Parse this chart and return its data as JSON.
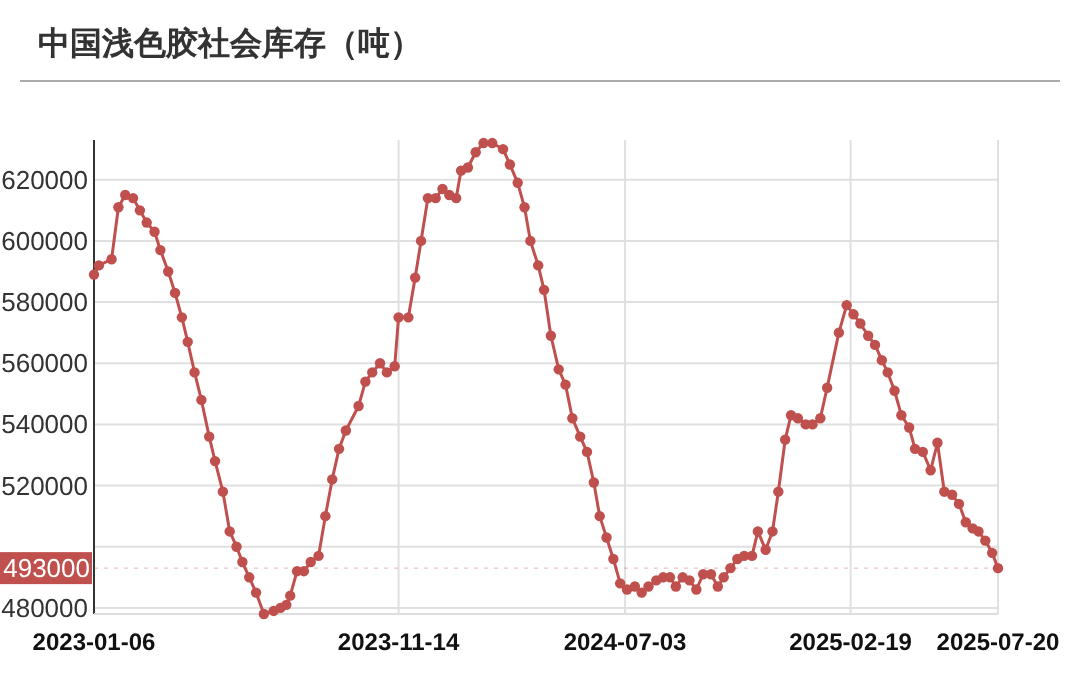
{
  "chart_data": {
    "type": "line",
    "title": "中国浅色胶社会库存（吨）",
    "x": [
      "2023-01-06",
      "2023-01-11",
      "2023-01-24",
      "2023-01-31",
      "2023-02-07",
      "2023-02-15",
      "2023-02-22",
      "2023-03-01",
      "2023-03-09",
      "2023-03-15",
      "2023-03-23",
      "2023-03-30",
      "2023-04-06",
      "2023-04-12",
      "2023-04-19",
      "2023-04-26",
      "2023-05-04",
      "2023-05-10",
      "2023-05-18",
      "2023-05-25",
      "2023-06-01",
      "2023-06-07",
      "2023-06-14",
      "2023-06-21",
      "2023-06-29",
      "2023-07-09",
      "2023-07-16",
      "2023-07-22",
      "2023-07-26",
      "2023-08-02",
      "2023-08-09",
      "2023-08-16",
      "2023-08-24",
      "2023-08-31",
      "2023-09-07",
      "2023-09-14",
      "2023-09-21",
      "2023-10-04",
      "2023-10-11",
      "2023-10-18",
      "2023-10-26",
      "2023-11-02",
      "2023-11-10",
      "2023-11-14",
      "2023-11-24",
      "2023-12-01",
      "2023-12-07",
      "2023-12-14",
      "2023-12-22",
      "2023-12-29",
      "2024-01-05",
      "2024-01-12",
      "2024-01-17",
      "2024-01-24",
      "2024-02-01",
      "2024-02-09",
      "2024-02-18",
      "2024-02-29",
      "2024-03-07",
      "2024-03-15",
      "2024-03-22",
      "2024-03-28",
      "2024-04-05",
      "2024-04-11",
      "2024-04-18",
      "2024-04-26",
      "2024-05-03",
      "2024-05-10",
      "2024-05-18",
      "2024-05-25",
      "2024-06-01",
      "2024-06-07",
      "2024-06-14",
      "2024-06-21",
      "2024-06-28",
      "2024-07-05",
      "2024-07-13",
      "2024-07-20",
      "2024-07-27",
      "2024-08-04",
      "2024-08-11",
      "2024-08-18",
      "2024-08-24",
      "2024-08-31",
      "2024-09-07",
      "2024-09-14",
      "2024-09-21",
      "2024-09-29",
      "2024-10-06",
      "2024-10-12",
      "2024-10-19",
      "2024-10-26",
      "2024-11-02",
      "2024-11-10",
      "2024-11-16",
      "2024-11-24",
      "2024-12-01",
      "2024-12-07",
      "2024-12-14",
      "2024-12-20",
      "2024-12-27",
      "2025-01-04",
      "2025-01-11",
      "2025-01-19",
      "2025-01-26",
      "2025-02-07",
      "2025-02-15",
      "2025-02-22",
      "2025-03-01",
      "2025-03-09",
      "2025-03-16",
      "2025-03-23",
      "2025-03-29",
      "2025-04-05",
      "2025-04-12",
      "2025-04-20",
      "2025-04-26",
      "2025-05-04",
      "2025-05-12",
      "2025-05-19",
      "2025-05-26",
      "2025-06-03",
      "2025-06-10",
      "2025-06-17",
      "2025-06-24",
      "2025-06-30",
      "2025-07-07",
      "2025-07-14",
      "2025-07-20"
    ],
    "values": [
      589000,
      592000,
      594000,
      611000,
      615000,
      614000,
      610000,
      606000,
      603000,
      597000,
      590000,
      583000,
      575000,
      567000,
      557000,
      548000,
      536000,
      528000,
      518000,
      505000,
      500000,
      495000,
      490000,
      485000,
      478000,
      479000,
      480000,
      481000,
      484000,
      492000,
      492000,
      495000,
      497000,
      510000,
      522000,
      532000,
      538000,
      546000,
      554000,
      557000,
      560000,
      557000,
      559000,
      575000,
      575000,
      588000,
      600000,
      614000,
      614000,
      617000,
      615000,
      614000,
      623000,
      624000,
      629000,
      632000,
      632000,
      630000,
      625000,
      619000,
      611000,
      600000,
      592000,
      584000,
      569000,
      558000,
      553000,
      542000,
      536000,
      531000,
      521000,
      510000,
      503000,
      496000,
      488000,
      486000,
      487000,
      485000,
      487000,
      489000,
      490000,
      490000,
      487000,
      490000,
      489000,
      486000,
      491000,
      491000,
      487000,
      490000,
      493000,
      496000,
      497000,
      497000,
      505000,
      499000,
      505000,
      518000,
      535000,
      543000,
      542000,
      540000,
      540000,
      542000,
      552000,
      570000,
      579000,
      576000,
      573000,
      569000,
      566000,
      561000,
      557000,
      551000,
      543000,
      539000,
      532000,
      531000,
      525000,
      534000,
      518000,
      517000,
      514000,
      508000,
      506000,
      505000,
      502000,
      498000,
      493000
    ],
    "color": "#c0504d",
    "marker": "circle",
    "grid": true,
    "xlim": [
      "2023-01-06",
      "2025-07-20"
    ],
    "xticks": [
      "2023-01-06",
      "2023-11-14",
      "2024-07-03",
      "2025-02-19",
      "2025-07-20"
    ],
    "ylim": [
      478000,
      633000
    ],
    "yticks": [
      480000,
      {
        "value": 500000,
        "label": null
      },
      520000,
      540000,
      560000,
      580000,
      600000,
      620000
    ],
    "ref_lines": [
      {
        "axis": "y",
        "value": 493000,
        "label": "493000"
      }
    ]
  }
}
